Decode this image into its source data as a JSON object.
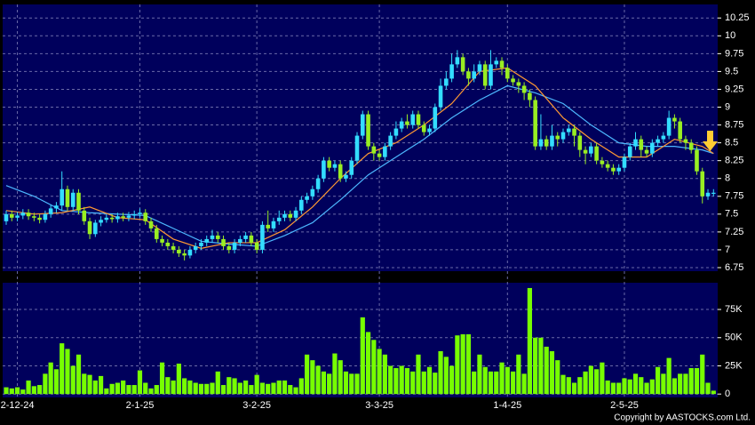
{
  "chart_data": [
    {
      "type": "candlestick",
      "up_color": "#33ddff",
      "down_color": "#99ee22",
      "categories": [
        null,
        null,
        "2-12-24",
        null,
        null,
        null,
        null,
        null,
        null,
        null,
        null,
        null,
        null,
        null,
        null,
        null,
        null,
        null,
        null,
        null,
        null,
        null,
        null,
        null,
        "2-1-25",
        null,
        null,
        null,
        null,
        null,
        null,
        null,
        null,
        null,
        null,
        null,
        null,
        null,
        null,
        null,
        null,
        null,
        null,
        null,
        null,
        "3-2-25",
        null,
        null,
        null,
        null,
        null,
        null,
        null,
        null,
        null,
        null,
        null,
        null,
        null,
        null,
        null,
        null,
        null,
        null,
        null,
        null,
        null,
        "3-3-25",
        null,
        null,
        null,
        null,
        null,
        null,
        null,
        null,
        null,
        null,
        null,
        null,
        null,
        null,
        null,
        null,
        null,
        null,
        null,
        null,
        null,
        null,
        "1-4-25",
        null,
        null,
        null,
        null,
        null,
        null,
        null,
        null,
        null,
        null,
        null,
        null,
        null,
        null,
        null,
        null,
        null,
        null,
        null,
        null,
        "2-5-25",
        null,
        null,
        null,
        null,
        null,
        null,
        null,
        null,
        null,
        null,
        null,
        null,
        null,
        null,
        null,
        null
      ],
      "open": [
        7.4,
        7.5,
        7.45,
        7.48,
        7.52,
        7.47,
        7.45,
        7.42,
        7.5,
        7.58,
        7.62,
        7.85,
        7.6,
        7.8,
        7.55,
        7.4,
        7.22,
        7.38,
        7.42,
        7.45,
        7.43,
        7.47,
        7.45,
        7.48,
        7.5,
        7.52,
        7.4,
        7.3,
        7.15,
        7.1,
        7.05,
        7.0,
        6.95,
        6.92,
        7.0,
        7.05,
        7.1,
        7.15,
        7.2,
        7.15,
        7.05,
        7.0,
        7.1,
        7.15,
        7.2,
        7.1,
        7.0,
        7.35,
        7.3,
        7.4,
        7.45,
        7.5,
        7.45,
        7.55,
        7.7,
        7.75,
        7.85,
        8.0,
        8.25,
        8.15,
        8.2,
        8.0,
        8.05,
        8.25,
        8.6,
        8.9,
        8.45,
        8.35,
        8.3,
        8.45,
        8.6,
        8.7,
        8.8,
        8.75,
        8.9,
        8.75,
        8.65,
        8.7,
        9.0,
        9.3,
        9.4,
        9.6,
        9.7,
        9.5,
        9.4,
        9.5,
        9.6,
        9.3,
        9.6,
        9.65,
        9.55,
        9.4,
        9.35,
        9.3,
        9.2,
        9.1,
        8.45,
        8.55,
        8.45,
        8.6,
        8.55,
        8.65,
        8.7,
        8.6,
        8.4,
        8.35,
        8.45,
        8.25,
        8.2,
        8.15,
        8.1,
        8.15,
        8.3,
        8.45,
        8.55,
        8.4,
        8.35,
        8.5,
        8.55,
        8.6,
        8.85,
        8.8,
        8.55,
        8.5,
        8.4,
        8.1,
        7.75,
        7.8
      ],
      "high": [
        7.55,
        7.55,
        7.53,
        7.57,
        7.57,
        7.52,
        7.5,
        7.55,
        7.63,
        7.67,
        8.1,
        7.9,
        7.85,
        7.85,
        7.6,
        7.45,
        7.42,
        7.47,
        7.5,
        7.5,
        7.52,
        7.52,
        7.53,
        7.55,
        7.58,
        7.57,
        7.45,
        7.35,
        7.2,
        7.15,
        7.1,
        7.05,
        7.0,
        7.05,
        7.1,
        7.15,
        7.2,
        7.28,
        7.25,
        7.2,
        7.1,
        7.15,
        7.2,
        7.25,
        7.25,
        7.15,
        7.4,
        7.55,
        7.45,
        7.55,
        7.55,
        7.55,
        7.6,
        7.75,
        7.8,
        7.9,
        8.05,
        8.3,
        8.3,
        8.25,
        8.25,
        8.1,
        8.3,
        8.65,
        8.95,
        8.95,
        8.5,
        8.4,
        8.5,
        8.65,
        8.8,
        8.85,
        8.9,
        8.95,
        8.95,
        8.8,
        8.75,
        9.05,
        9.4,
        9.5,
        9.75,
        9.8,
        9.75,
        9.55,
        9.6,
        9.65,
        9.65,
        9.8,
        9.7,
        9.7,
        9.6,
        9.45,
        9.4,
        9.35,
        9.25,
        9.15,
        8.9,
        8.6,
        8.75,
        8.65,
        8.7,
        8.75,
        8.75,
        8.65,
        8.45,
        8.5,
        8.5,
        8.3,
        8.25,
        8.2,
        8.2,
        8.35,
        8.5,
        8.65,
        8.6,
        8.45,
        8.55,
        8.6,
        8.65,
        8.95,
        8.9,
        8.85,
        8.6,
        8.55,
        8.45,
        8.15,
        7.85,
        7.85
      ],
      "low": [
        7.35,
        7.4,
        7.4,
        7.43,
        7.42,
        7.4,
        7.37,
        7.38,
        7.45,
        7.52,
        7.55,
        7.55,
        7.55,
        7.5,
        7.35,
        7.15,
        7.18,
        7.33,
        7.38,
        7.38,
        7.38,
        7.4,
        7.4,
        7.43,
        7.45,
        7.35,
        7.25,
        7.1,
        7.05,
        7.0,
        6.95,
        6.9,
        6.85,
        6.88,
        6.95,
        7.0,
        7.05,
        7.1,
        7.1,
        7.0,
        6.95,
        6.95,
        7.05,
        7.1,
        7.05,
        6.95,
        6.95,
        7.25,
        7.25,
        7.35,
        7.4,
        7.4,
        7.4,
        7.5,
        7.65,
        7.7,
        7.8,
        7.95,
        8.1,
        8.1,
        7.95,
        7.95,
        8.0,
        8.2,
        8.55,
        8.4,
        8.25,
        8.25,
        8.25,
        8.4,
        8.55,
        8.65,
        8.7,
        8.7,
        8.7,
        8.6,
        8.6,
        8.65,
        8.95,
        9.25,
        9.35,
        9.55,
        9.45,
        9.3,
        9.35,
        9.45,
        9.25,
        9.25,
        9.55,
        9.45,
        9.35,
        9.3,
        9.2,
        9.1,
        9.0,
        8.4,
        8.4,
        8.4,
        8.4,
        8.45,
        8.5,
        8.6,
        8.45,
        8.3,
        8.2,
        8.3,
        8.2,
        8.15,
        8.1,
        8.05,
        8.05,
        8.1,
        8.25,
        8.4,
        8.3,
        8.3,
        8.3,
        8.45,
        8.5,
        8.55,
        8.7,
        8.5,
        8.4,
        8.35,
        8.05,
        7.65,
        7.7,
        7.75
      ],
      "close": [
        7.5,
        7.45,
        7.48,
        7.52,
        7.47,
        7.45,
        7.42,
        7.5,
        7.58,
        7.62,
        7.85,
        7.6,
        7.8,
        7.55,
        7.4,
        7.22,
        7.38,
        7.42,
        7.45,
        7.43,
        7.47,
        7.45,
        7.48,
        7.5,
        7.52,
        7.4,
        7.3,
        7.15,
        7.1,
        7.05,
        7.0,
        6.95,
        6.92,
        7.0,
        7.05,
        7.1,
        7.15,
        7.2,
        7.15,
        7.05,
        7.0,
        7.1,
        7.15,
        7.2,
        7.1,
        7.0,
        7.35,
        7.3,
        7.4,
        7.45,
        7.5,
        7.45,
        7.55,
        7.7,
        7.75,
        7.85,
        8.0,
        8.25,
        8.15,
        8.2,
        8.0,
        8.05,
        8.25,
        8.6,
        8.9,
        8.45,
        8.35,
        8.3,
        8.45,
        8.6,
        8.7,
        8.8,
        8.75,
        8.9,
        8.75,
        8.65,
        8.7,
        9.0,
        9.3,
        9.4,
        9.6,
        9.7,
        9.5,
        9.4,
        9.5,
        9.6,
        9.3,
        9.6,
        9.65,
        9.55,
        9.4,
        9.35,
        9.3,
        9.2,
        9.1,
        8.45,
        8.55,
        8.45,
        8.6,
        8.55,
        8.65,
        8.7,
        8.6,
        8.4,
        8.35,
        8.45,
        8.25,
        8.2,
        8.15,
        8.1,
        8.15,
        8.3,
        8.45,
        8.55,
        8.4,
        8.35,
        8.5,
        8.55,
        8.6,
        8.85,
        8.8,
        8.55,
        8.5,
        8.4,
        8.1,
        7.75,
        7.8,
        7.8
      ],
      "series": [
        {
          "color": "#4db8ff",
          "x": [
            0,
            5,
            10,
            15,
            20,
            25,
            30,
            35,
            40,
            45,
            50,
            55,
            60,
            65,
            70,
            75,
            80,
            85,
            90,
            95,
            100,
            105,
            110,
            115,
            120,
            125,
            127
          ],
          "values": [
            7.9,
            7.75,
            7.55,
            7.52,
            7.5,
            7.48,
            7.3,
            7.12,
            7.08,
            7.05,
            7.2,
            7.38,
            7.7,
            8.05,
            8.3,
            8.55,
            8.85,
            9.1,
            9.3,
            9.2,
            9.05,
            8.75,
            8.5,
            8.45,
            8.45,
            8.4,
            8.35
          ]
        },
        {
          "color": "#ff9933",
          "x": [
            0,
            5,
            10,
            15,
            20,
            25,
            30,
            35,
            40,
            45,
            50,
            55,
            60,
            65,
            70,
            75,
            80,
            85,
            90,
            95,
            100,
            105,
            110,
            115,
            120,
            125,
            127
          ],
          "values": [
            7.55,
            7.5,
            7.52,
            7.6,
            7.45,
            7.42,
            7.15,
            7.02,
            7.1,
            7.1,
            7.28,
            7.6,
            8.0,
            8.35,
            8.5,
            8.75,
            9.05,
            9.5,
            9.55,
            9.3,
            8.85,
            8.55,
            8.3,
            8.3,
            8.55,
            8.45,
            8.35
          ]
        }
      ],
      "ylim": [
        6.7,
        10.44
      ],
      "yticks": [
        6.75,
        7,
        7.25,
        7.5,
        7.75,
        8,
        8.25,
        8.5,
        8.75,
        9,
        9.25,
        9.5,
        9.75,
        10,
        10.25
      ],
      "grid": true
    },
    {
      "type": "bar",
      "color": "#77ff00",
      "values": [
        6000,
        5000,
        6000,
        4000,
        12000,
        7000,
        8000,
        18000,
        28000,
        22000,
        45000,
        40000,
        25000,
        35000,
        18000,
        17000,
        12000,
        16000,
        5000,
        9000,
        10000,
        12000,
        8000,
        8000,
        21000,
        10000,
        5000,
        8000,
        28000,
        15000,
        12000,
        27000,
        14000,
        12000,
        10000,
        9000,
        9000,
        10000,
        20000,
        8000,
        15000,
        14000,
        10000,
        12000,
        8000,
        17000,
        10000,
        9000,
        10000,
        12000,
        12000,
        8000,
        6000,
        14000,
        35000,
        30000,
        25000,
        20000,
        18000,
        36000,
        30000,
        20000,
        18000,
        18000,
        68000,
        55000,
        48000,
        40000,
        35000,
        25000,
        23000,
        25000,
        23000,
        20000,
        35000,
        20000,
        24000,
        19000,
        38000,
        33000,
        25000,
        52000,
        53000,
        53000,
        20000,
        35000,
        24000,
        20000,
        20000,
        28000,
        24000,
        20000,
        35000,
        18000,
        94000,
        50000,
        50000,
        42000,
        38000,
        30000,
        17000,
        15000,
        10000,
        15000,
        20000,
        25000,
        22000,
        28000,
        12000,
        10000,
        10000,
        14000,
        13000,
        18000,
        15000,
        10000,
        13000,
        24000,
        18000,
        32000,
        14000,
        18000,
        18000,
        23000,
        23000,
        35000,
        10000,
        3000
      ],
      "ylim": [
        -3000,
        98700
      ],
      "yticks": [
        0,
        {
          "value": 25000,
          "label": "25K"
        },
        {
          "value": 50000,
          "label": "50K"
        },
        {
          "value": 75000,
          "label": "75K"
        }
      ],
      "grid": true
    }
  ],
  "copyright": "Copyright by AASTOCKS.com Ltd."
}
